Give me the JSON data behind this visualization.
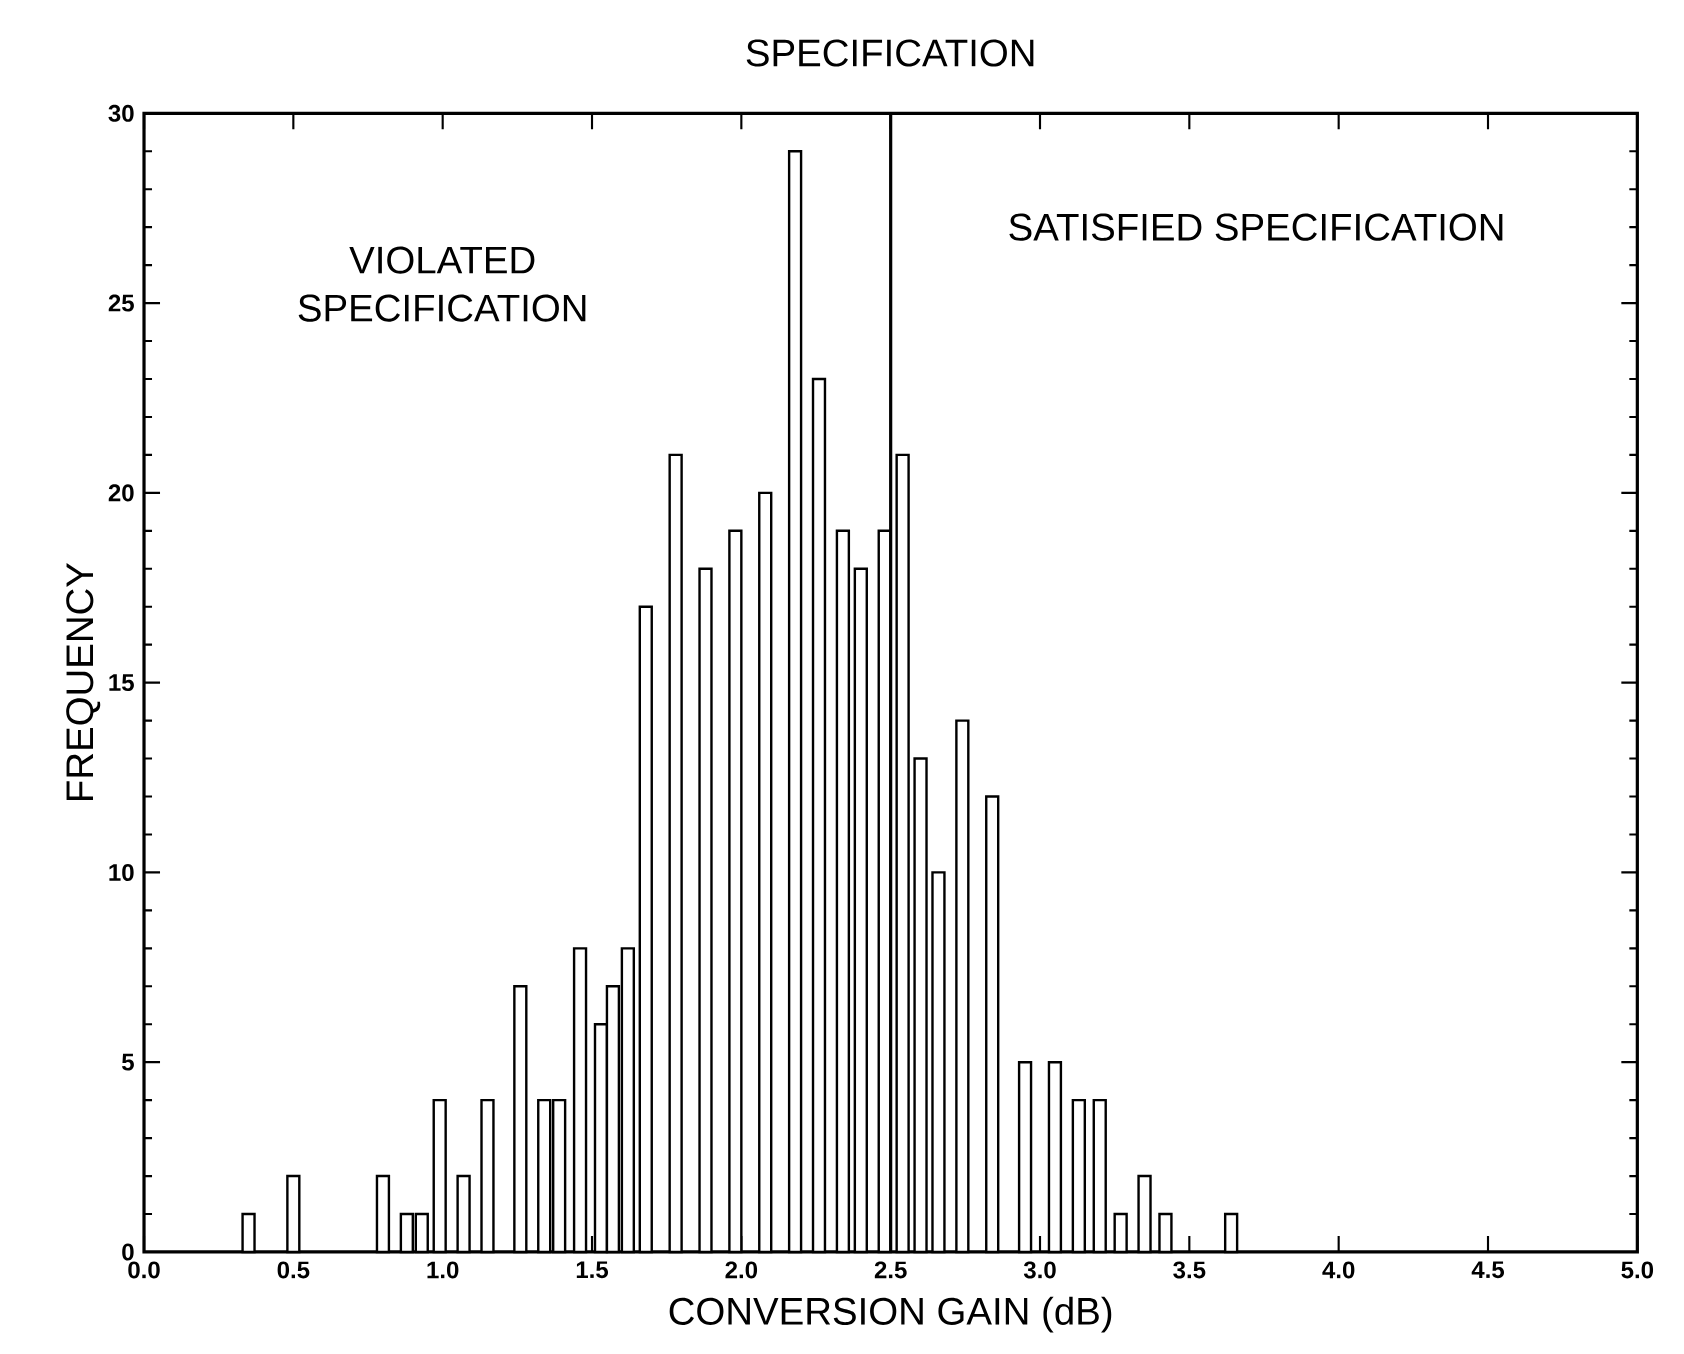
{
  "chart_data": {
    "type": "bar",
    "x": [
      0.35,
      0.5,
      0.8,
      0.88,
      0.93,
      0.99,
      1.07,
      1.15,
      1.26,
      1.34,
      1.39,
      1.46,
      1.53,
      1.57,
      1.62,
      1.68,
      1.78,
      1.88,
      1.98,
      2.08,
      2.18,
      2.26,
      2.34,
      2.4,
      2.48,
      2.54,
      2.6,
      2.66,
      2.74,
      2.84,
      2.95,
      3.05,
      3.13,
      3.2,
      3.27,
      3.35,
      3.42,
      3.64
    ],
    "values": [
      1,
      2,
      2,
      1,
      1,
      4,
      2,
      4,
      7,
      4,
      4,
      8,
      6,
      7,
      8,
      17,
      21,
      18,
      19,
      20,
      29,
      23,
      19,
      18,
      19,
      21,
      13,
      10,
      14,
      12,
      5,
      5,
      4,
      4,
      1,
      2,
      1,
      1
    ],
    "color": "#000000",
    "xlabel": "CONVERSION GAIN (dB)",
    "ylabel": "FREQUENCY",
    "xlim": [
      0,
      5
    ],
    "ylim": [
      0,
      30
    ],
    "xticks": [
      {
        "value": 0,
        "label": "0.0"
      },
      {
        "value": 0.5,
        "label": "0.5"
      },
      {
        "value": 1,
        "label": "1.0"
      },
      {
        "value": 1.5,
        "label": "1.5"
      },
      {
        "value": 2,
        "label": "2.0"
      },
      {
        "value": 2.5,
        "label": "2.5"
      },
      {
        "value": 3,
        "label": "3.0"
      },
      {
        "value": 3.5,
        "label": "3.5"
      },
      {
        "value": 4,
        "label": "4.0"
      },
      {
        "value": 4.5,
        "label": "4.5"
      },
      {
        "value": 5,
        "label": "5.0"
      }
    ],
    "yticks": [
      0,
      5,
      10,
      15,
      20,
      25,
      30
    ],
    "ref_lines": [
      {
        "axis": "x",
        "value": 2.5,
        "label": "SPECIFICATION"
      }
    ],
    "annotations": [
      "VIOLATED SPECIFICATION",
      "SATISFIED SPECIFICATION"
    ]
  }
}
